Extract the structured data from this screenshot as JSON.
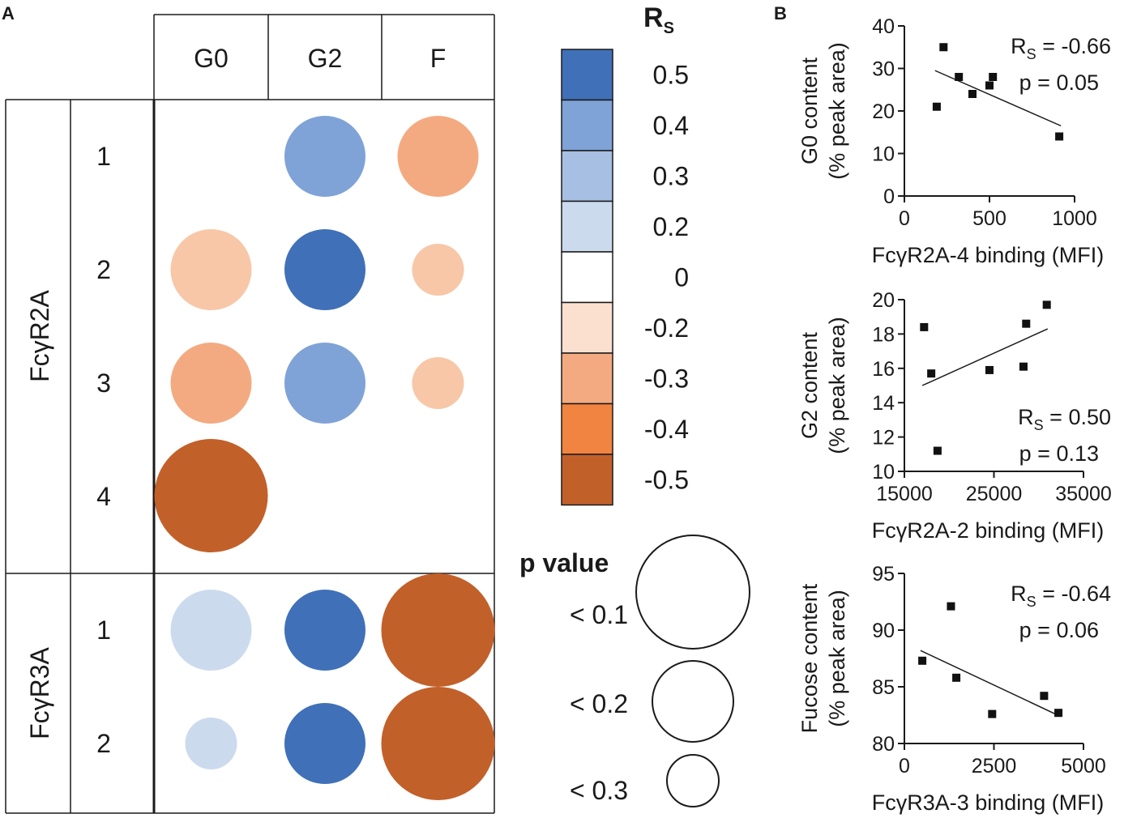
{
  "panels": {
    "a_label": "A",
    "b_label": "B"
  },
  "columns": [
    "G0",
    "G2",
    "F"
  ],
  "groups": [
    {
      "name": "FcγR2A",
      "rows": [
        "1",
        "2",
        "3",
        "4"
      ]
    },
    {
      "name": "FcγR3A",
      "rows": [
        "1",
        "2"
      ]
    }
  ],
  "bubbles": [
    {
      "group": 0,
      "row": 0,
      "col": 1,
      "color": "#7fa3d7",
      "p": "< 0.2"
    },
    {
      "group": 0,
      "row": 0,
      "col": 2,
      "color": "#f4aa80",
      "p": "< 0.2"
    },
    {
      "group": 0,
      "row": 1,
      "col": 0,
      "color": "#f7c7a8",
      "p": "< 0.2"
    },
    {
      "group": 0,
      "row": 1,
      "col": 1,
      "color": "#4070b8",
      "p": "< 0.2"
    },
    {
      "group": 0,
      "row": 1,
      "col": 2,
      "color": "#f7c7a8",
      "p": "< 0.3"
    },
    {
      "group": 0,
      "row": 2,
      "col": 0,
      "color": "#f4aa80",
      "p": "< 0.2"
    },
    {
      "group": 0,
      "row": 2,
      "col": 1,
      "color": "#7fa3d7",
      "p": "< 0.2"
    },
    {
      "group": 0,
      "row": 2,
      "col": 2,
      "color": "#f7c7a8",
      "p": "< 0.3"
    },
    {
      "group": 0,
      "row": 3,
      "col": 0,
      "color": "#c2602a",
      "p": "< 0.1"
    },
    {
      "group": 1,
      "row": 0,
      "col": 0,
      "color": "#ccdaee",
      "p": "< 0.2"
    },
    {
      "group": 1,
      "row": 0,
      "col": 1,
      "color": "#4070b8",
      "p": "< 0.2"
    },
    {
      "group": 1,
      "row": 0,
      "col": 2,
      "color": "#c2602a",
      "p": "< 0.1"
    },
    {
      "group": 1,
      "row": 1,
      "col": 0,
      "color": "#ccdaee",
      "p": "< 0.3"
    },
    {
      "group": 1,
      "row": 1,
      "col": 1,
      "color": "#4070b8",
      "p": "< 0.2"
    },
    {
      "group": 1,
      "row": 1,
      "col": 2,
      "color": "#c2602a",
      "p": "< 0.1"
    }
  ],
  "legend": {
    "rs_title": "R",
    "rs_sub": "S",
    "scale": [
      {
        "label": "0.5",
        "color": "#4070b8"
      },
      {
        "label": "0.4",
        "color": "#7fa3d7"
      },
      {
        "label": "0.3",
        "color": "#a6bfe3"
      },
      {
        "label": "0.2",
        "color": "#ccdaee"
      },
      {
        "label": "0",
        "color": "#ffffff"
      },
      {
        "label": "-0.2",
        "color": "#fbe0d0"
      },
      {
        "label": "-0.3",
        "color": "#f4aa80"
      },
      {
        "label": "-0.4",
        "color": "#f08440"
      },
      {
        "label": "-0.5",
        "color": "#c2602a"
      }
    ],
    "p_title": "p value",
    "p_items": [
      {
        "label": "< 0.1"
      },
      {
        "label": "< 0.2"
      },
      {
        "label": "< 0.3"
      }
    ]
  },
  "chart_data": [
    {
      "type": "scatter",
      "ylabel_line1": "G0 content",
      "ylabel_line2": "(% peak area)",
      "xlabel": "FcγR2A-4 binding (MFI)",
      "xlim": [
        0,
        1000
      ],
      "ylim": [
        0,
        40
      ],
      "xticks": [
        0,
        500,
        1000
      ],
      "yticks": [
        0,
        10,
        20,
        30,
        40
      ],
      "points": [
        [
          190,
          21
        ],
        [
          230,
          35
        ],
        [
          320,
          28
        ],
        [
          400,
          24
        ],
        [
          500,
          26
        ],
        [
          520,
          28
        ],
        [
          910,
          14
        ]
      ],
      "fit": [
        [
          180,
          29.5
        ],
        [
          920,
          16.5
        ]
      ],
      "stat_r_label": "R",
      "stat_r_sub": "S",
      "stat_r_value": " = -0.66",
      "stat_p": "p = 0.05",
      "stats_corner": "top"
    },
    {
      "type": "scatter",
      "ylabel_line1": "G2 content",
      "ylabel_line2": "(% peak area)",
      "xlabel": "FcγR2A-2 binding (MFI)",
      "xlim": [
        15000,
        35000
      ],
      "ylim": [
        10,
        20
      ],
      "xticks": [
        15000,
        25000,
        35000
      ],
      "yticks": [
        10,
        12,
        14,
        16,
        18,
        20
      ],
      "points": [
        [
          17200,
          18.4
        ],
        [
          18000,
          15.7
        ],
        [
          18700,
          11.2
        ],
        [
          24500,
          15.9
        ],
        [
          28300,
          16.1
        ],
        [
          28600,
          18.6
        ],
        [
          30900,
          19.7
        ]
      ],
      "fit": [
        [
          17000,
          15.0
        ],
        [
          31000,
          18.3
        ]
      ],
      "stat_r_label": "R",
      "stat_r_sub": "S",
      "stat_r_value": " = 0.50",
      "stat_p": "p = 0.13",
      "stats_corner": "bottom"
    },
    {
      "type": "scatter",
      "ylabel_line1": "Fucose content",
      "ylabel_line2": "(% peak area)",
      "xlabel": "FcγR3A-3 binding (MFI)",
      "xlim": [
        0,
        5000
      ],
      "ylim": [
        80,
        95
      ],
      "xticks": [
        0,
        2500,
        5000
      ],
      "yticks": [
        80,
        85,
        90,
        95
      ],
      "points": [
        [
          500,
          87.3
        ],
        [
          1300,
          92.1
        ],
        [
          1450,
          85.8
        ],
        [
          2450,
          82.6
        ],
        [
          3900,
          84.2
        ],
        [
          4300,
          82.7
        ]
      ],
      "fit": [
        [
          450,
          88.2
        ],
        [
          4350,
          82.4
        ]
      ],
      "stat_r_label": "R",
      "stat_r_sub": "S",
      "stat_r_value": " = -0.64",
      "stat_p": "p = 0.06",
      "stats_corner": "top"
    }
  ]
}
